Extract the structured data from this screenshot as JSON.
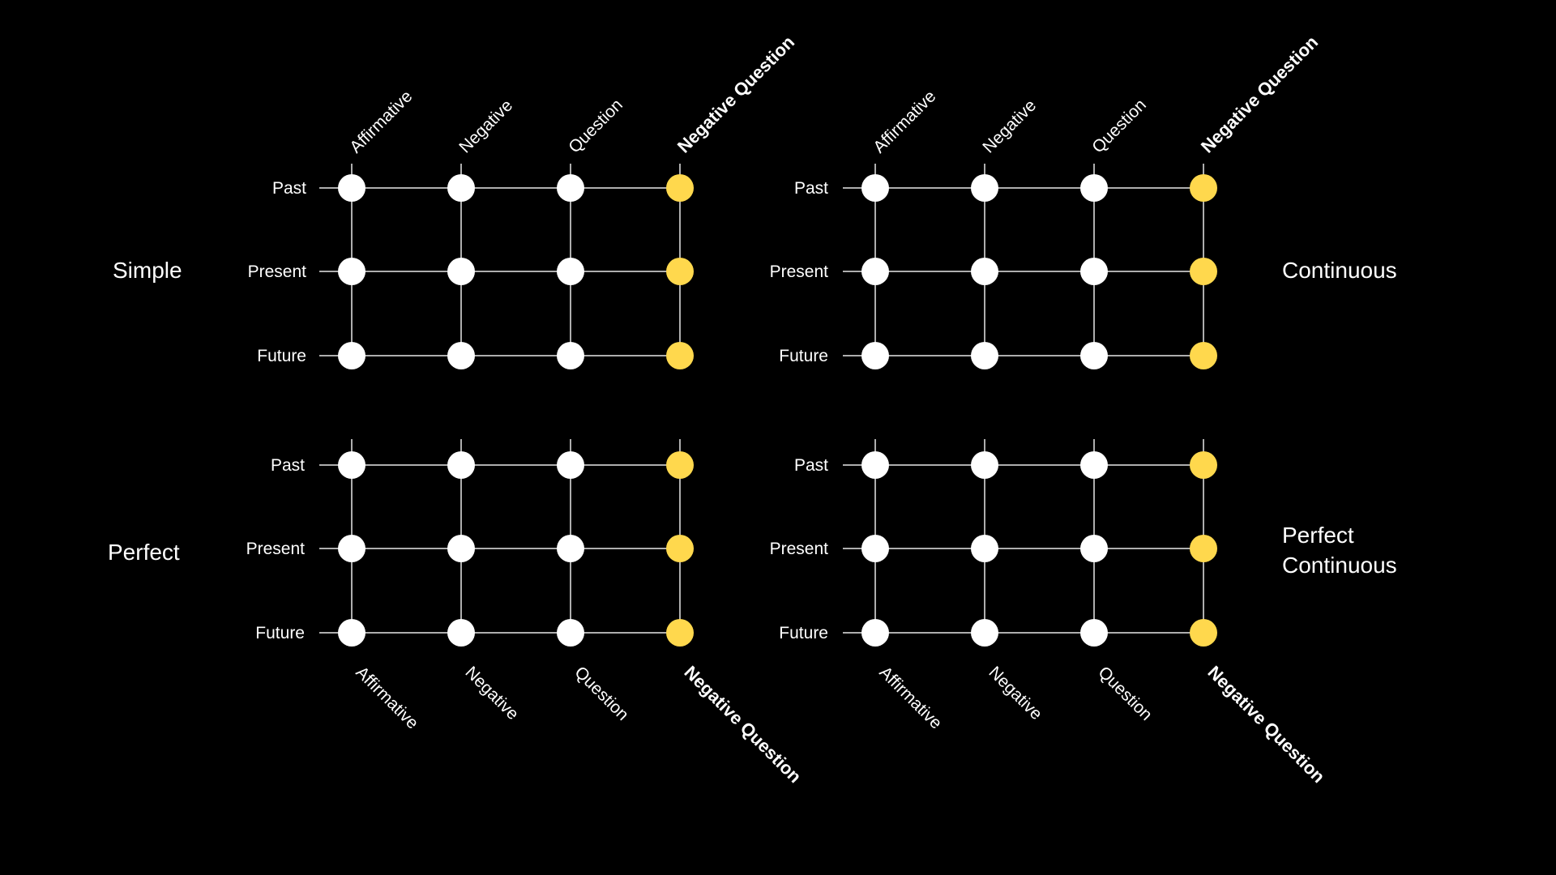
{
  "colors": {
    "background": "#000000",
    "node": "#ffffff",
    "accent_node": "#ffd84d",
    "line": "#e8e8e8"
  },
  "columns": [
    "Affirmative",
    "Negative",
    "Question",
    "Negative Question"
  ],
  "rows": [
    "Past",
    "Present",
    "Future"
  ],
  "accent_column": "Negative Question",
  "panels": [
    {
      "group": "Simple",
      "group_lines": [
        "Simple"
      ],
      "column_labels_position": "top",
      "group_label_side": "left"
    },
    {
      "group": "Continuous",
      "group_lines": [
        "Continuous"
      ],
      "column_labels_position": "top",
      "group_label_side": "right"
    },
    {
      "group": "Perfect",
      "group_lines": [
        "Perfect"
      ],
      "column_labels_position": "bottom",
      "group_label_side": "left"
    },
    {
      "group": "Perfect Continuous",
      "group_lines": [
        "Perfect",
        "Continuous"
      ],
      "column_labels_position": "bottom",
      "group_label_side": "right"
    }
  ]
}
